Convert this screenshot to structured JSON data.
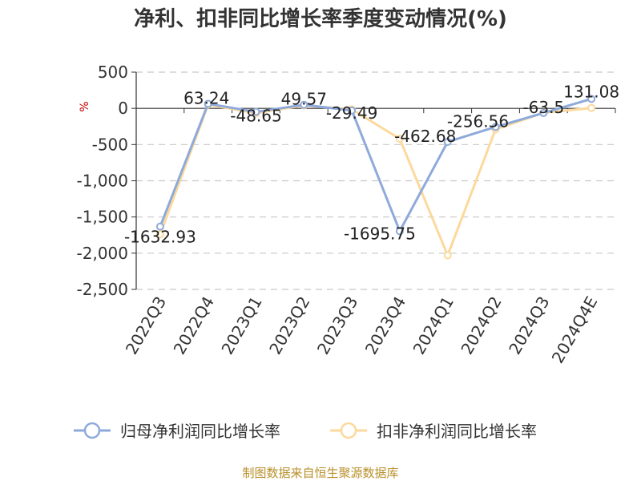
{
  "chart_data": {
    "type": "line",
    "title": "净利、扣非同比增长率季度变动情况(%)",
    "ylabel": "%",
    "xlabel": "",
    "categories": [
      "2022Q3",
      "2022Q4",
      "2023Q1",
      "2023Q2",
      "2023Q3",
      "2023Q4",
      "2024Q1",
      "2024Q2",
      "2024Q3",
      "2024Q4E"
    ],
    "ylim": [
      -2500,
      500
    ],
    "yticks": [
      500,
      0,
      -500,
      -1000,
      -1500,
      -2000,
      -2500
    ],
    "ytick_labels": [
      "500",
      "0",
      "-500",
      "-1,000",
      "-1,500",
      "-2,000",
      "-2,500"
    ],
    "grid": "horizontal-dashed",
    "legend_position": "bottom",
    "series": [
      {
        "name": "归母净利润同比增长率",
        "color": "#8eaadb",
        "values": [
          -1632.93,
          63.24,
          -48.65,
          49.57,
          -29.49,
          -1695.75,
          -462.68,
          -256.56,
          -63.5,
          131.08
        ],
        "labels": [
          "-1632.93",
          "63.24",
          "-48.65",
          "49.57",
          "-29.49",
          "-1695.75",
          "-462.68",
          "-256.56",
          "-63.5",
          "131.08"
        ]
      },
      {
        "name": "扣非净利润同比增长率",
        "color": "#fcd99c",
        "values": [
          -1740,
          50,
          -65,
          40,
          -15,
          -420,
          -2030,
          -290,
          -60,
          5
        ]
      }
    ]
  },
  "footer": {
    "source": "制图数据来自恒生聚源数据库"
  }
}
